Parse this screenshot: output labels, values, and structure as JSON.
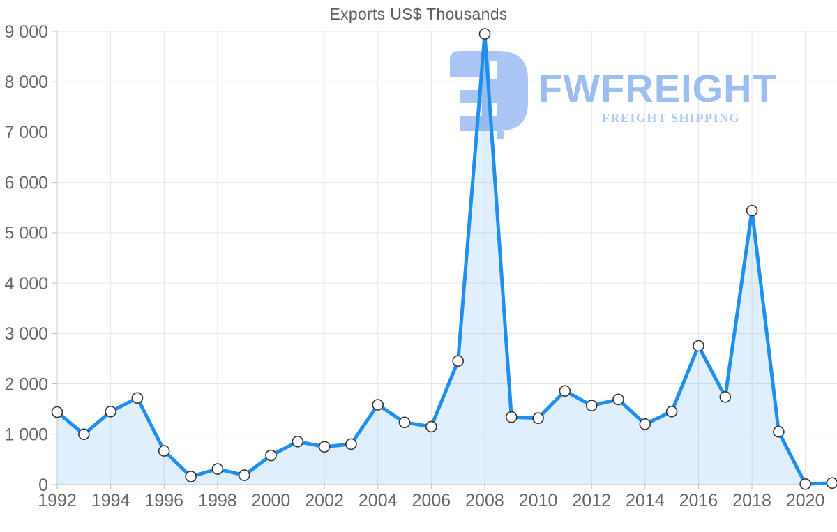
{
  "chart_data": {
    "type": "area",
    "title": "Exports US$ Thousands",
    "x": [
      1992,
      1993,
      1994,
      1995,
      1996,
      1997,
      1998,
      1999,
      2000,
      2001,
      2002,
      2003,
      2004,
      2005,
      2006,
      2007,
      2008,
      2009,
      2010,
      2011,
      2012,
      2013,
      2014,
      2015,
      2016,
      2017,
      2018,
      2019,
      2020,
      2021
    ],
    "values": [
      1440,
      1000,
      1450,
      1720,
      670,
      160,
      310,
      185,
      580,
      855,
      750,
      805,
      1585,
      1235,
      1150,
      2455,
      8950,
      1340,
      1320,
      1860,
      1570,
      1690,
      1200,
      1450,
      2755,
      1740,
      5440,
      1050,
      10,
      30
    ],
    "xlabel": "",
    "ylabel": "",
    "ylim": [
      0,
      9000
    ],
    "y_tick_step": 1000,
    "y_tick_labels": [
      "0",
      "1 000",
      "2 000",
      "3 000",
      "4 000",
      "5 000",
      "6 000",
      "7 000",
      "8 000",
      "9 000"
    ],
    "x_tick_labels": [
      "1992",
      "1994",
      "1996",
      "1998",
      "2000",
      "2002",
      "2004",
      "2006",
      "2008",
      "2010",
      "2012",
      "2014",
      "2016",
      "2018",
      "2020"
    ],
    "grid": true,
    "legend": "none",
    "colors": {
      "line": "#1e8fee",
      "fill": "rgba(30, 143, 238, 0.14)",
      "grid": "#e6e6e6",
      "axis": "#cccccc",
      "tick": "#bbbbbb",
      "label": "#666666",
      "marker_fill": "#ffffff",
      "marker_stroke": "#333333"
    }
  },
  "logo": {
    "name": "FWFREIGHT",
    "tagline": "FREIGHT SHIPPING",
    "mark_color": "#a9c5f3",
    "name_color": "#9bbdf2",
    "tagline_color": "#aec9f5"
  }
}
